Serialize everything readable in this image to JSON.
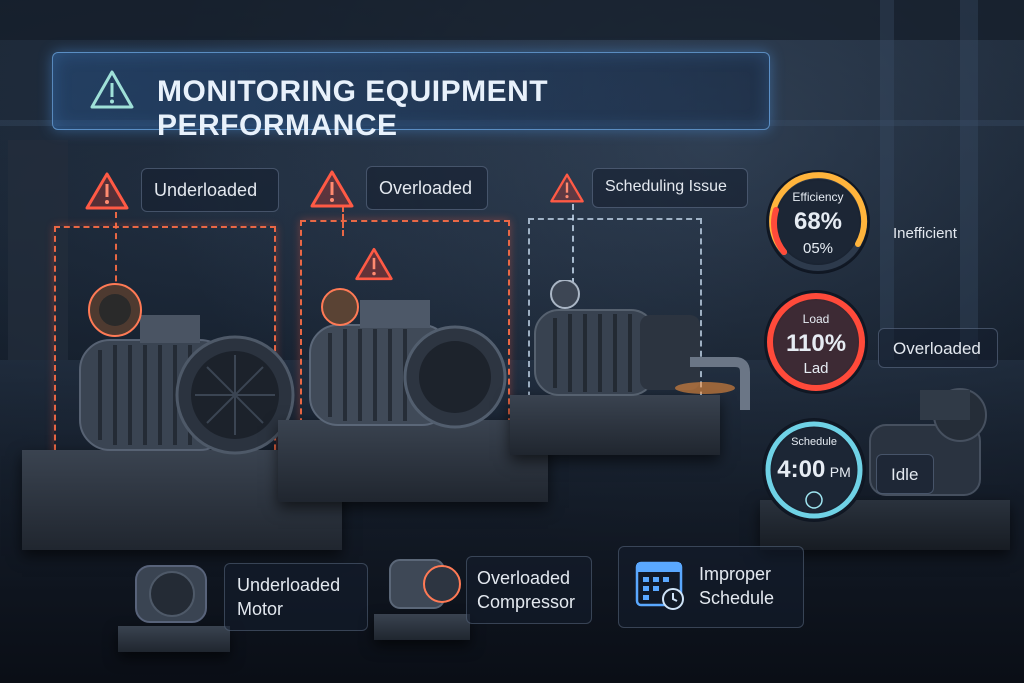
{
  "title": "MONITORING EQUIPMENT PERFORMANCE",
  "alerts": [
    {
      "label": "Underloaded"
    },
    {
      "label": "Overloaded"
    },
    {
      "label": "Scheduling Issue"
    }
  ],
  "gauges": {
    "efficiency": {
      "title": "Efficiency",
      "value": "68%",
      "sub": "05%",
      "status": "Inefficient",
      "level": 0.68
    },
    "load": {
      "title": "Load",
      "value": "110%",
      "sub": "Lad",
      "status": "Overloaded",
      "level": 1.0
    },
    "schedule": {
      "title": "Schedule",
      "time": "4:00",
      "ampm": "PM",
      "status": "Idle"
    }
  },
  "legend": [
    {
      "line1": "Underloaded",
      "line2": "Motor"
    },
    {
      "line1": "Overloaded",
      "line2": "Compressor"
    },
    {
      "line1": "Improper",
      "line2": "Schedule"
    }
  ],
  "colors": {
    "warning": "#ff5a45",
    "accent": "#5aa8ff",
    "schedule": "#6fd2e6"
  }
}
